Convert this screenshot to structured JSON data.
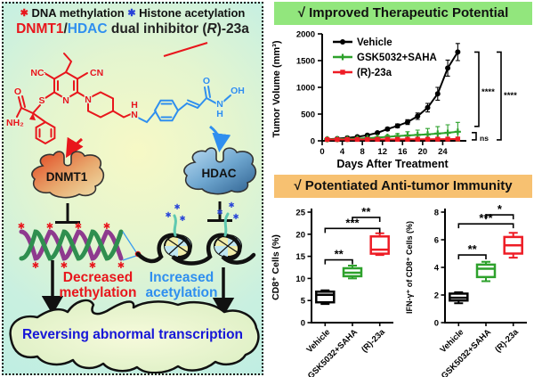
{
  "colors": {
    "red_accent": "#e8161c",
    "blue_accent": "#2f8fef",
    "green_banner": "#92e67d",
    "orange_banner": "#f7c171",
    "series_black": "#000000",
    "series_green": "#2ea12c",
    "series_red": "#ee1c25"
  },
  "left_panel": {
    "legend": {
      "star1": "✱",
      "item1": "DNA methylation",
      "star2": "✱",
      "item2": "Histone acetylation"
    },
    "title": {
      "dnmt1": "DNMT1",
      "slash": "/",
      "hdac": "HDAC",
      "rest1": " dual inhibitor (",
      "r": "R",
      "rest2": ")-23a"
    },
    "structure": {
      "nc": "NC",
      "cn": "CN",
      "s": "S",
      "n_pyridine": "N",
      "o_amide": "O",
      "nh2": "NH₂",
      "n_piperidine": "N",
      "h_linker": "H",
      "n_linker": "N",
      "o_carbonyl": "O",
      "n_hydroxamic": "N",
      "h_hydroxamic": "H",
      "oh": "OH"
    },
    "enzymes": {
      "dnmt1": "DNMT1",
      "hdac": "HDAC"
    },
    "decreased": "Decreased\nmethylation",
    "increased": "Increased\nacetylation",
    "banner": "Reversing abnormal transcription"
  },
  "right_top": {
    "title": "√ Improved Therapeutic Potential"
  },
  "right_bottom": {
    "title": "√ Potentiated Anti-tumor Immunity"
  },
  "chart_data": [
    {
      "type": "line",
      "xlabel": "Days After Treatment",
      "ylabel": "Tumor Volume (mm³)",
      "xlim": [
        0,
        28
      ],
      "ylim": [
        0,
        2000
      ],
      "xticks": [
        0,
        4,
        8,
        12,
        16,
        20,
        24
      ],
      "yticks": [
        0,
        500,
        1000,
        1500,
        2000
      ],
      "legend_position": "top-left",
      "x": [
        1,
        3,
        5,
        7,
        9,
        11,
        13,
        15,
        17,
        19,
        21,
        23,
        25,
        27
      ],
      "series": [
        {
          "name": "Vehicle",
          "color": "#000000",
          "marker": "circle",
          "values": [
            30,
            40,
            55,
            75,
            105,
            150,
            220,
            280,
            350,
            460,
            620,
            880,
            1360,
            1660
          ],
          "errors": [
            8,
            8,
            10,
            12,
            15,
            20,
            30,
            35,
            45,
            60,
            80,
            120,
            150,
            160
          ]
        },
        {
          "name": "GSK5032+SAHA",
          "color": "#2ea12c",
          "marker": "plus",
          "values": [
            30,
            32,
            36,
            42,
            50,
            60,
            75,
            90,
            100,
            110,
            120,
            135,
            150,
            170
          ],
          "errors": [
            6,
            6,
            8,
            10,
            14,
            18,
            28,
            45,
            70,
            90,
            110,
            130,
            150,
            175
          ]
        },
        {
          "name": "(R)-23a",
          "color": "#ee1c25",
          "marker": "square",
          "values": [
            25,
            24,
            25,
            26,
            26,
            27,
            28,
            28,
            29,
            30,
            30,
            31,
            32,
            34
          ],
          "errors": [
            5,
            5,
            5,
            6,
            6,
            6,
            7,
            7,
            7,
            8,
            8,
            8,
            9,
            10
          ]
        }
      ],
      "significance": [
        {
          "label": "****",
          "between": [
            "Vehicle",
            "GSK5032+SAHA"
          ]
        },
        {
          "label": "****",
          "between": [
            "Vehicle",
            "(R)-23a"
          ]
        },
        {
          "label": "ns",
          "between": [
            "GSK5032+SAHA",
            "(R)-23a"
          ]
        }
      ]
    },
    {
      "type": "box",
      "ylabel": "CD8⁺ Cells (%)",
      "ylim": [
        0,
        25
      ],
      "yticks": [
        0,
        5,
        10,
        15,
        20,
        25
      ],
      "categories": [
        "Vehicle",
        "GSK5032+SAHA",
        "(R)-23a"
      ],
      "boxes": [
        {
          "name": "Vehicle",
          "color": "#000000",
          "whislo": 4.2,
          "q1": 4.6,
          "med": 6.3,
          "q3": 7.0,
          "whishi": 7.3
        },
        {
          "name": "GSK5032+SAHA",
          "color": "#2ea12c",
          "whislo": 10.0,
          "q1": 10.5,
          "med": 11.3,
          "q3": 12.3,
          "whishi": 12.9
        },
        {
          "name": "(R)-23a",
          "color": "#ee1c25",
          "whislo": 15.3,
          "q1": 15.6,
          "med": 16.5,
          "q3": 19.5,
          "whishi": 20.2
        }
      ],
      "significance": [
        {
          "label": "**",
          "pair": [
            0,
            1
          ],
          "height": 14.2
        },
        {
          "label": "***",
          "pair": [
            0,
            2
          ],
          "height": 21.3
        },
        {
          "label": "**",
          "pair": [
            1,
            2
          ],
          "height": 23.8
        }
      ]
    },
    {
      "type": "box",
      "ylabel": "IFN-γ⁺ of CD8⁺ Cells (%)",
      "ylim": [
        0,
        8
      ],
      "yticks": [
        0,
        2,
        4,
        6,
        8
      ],
      "categories": [
        "Vehicle",
        "GSK5032+SAHA",
        "(R)-23a"
      ],
      "boxes": [
        {
          "name": "Vehicle",
          "color": "#000000",
          "whislo": 1.4,
          "q1": 1.6,
          "med": 1.8,
          "q3": 2.1,
          "whishi": 2.2
        },
        {
          "name": "GSK5032+SAHA",
          "color": "#2ea12c",
          "whislo": 3.0,
          "q1": 3.3,
          "med": 3.9,
          "q3": 4.2,
          "whishi": 4.4
        },
        {
          "name": "(R)-23a",
          "color": "#ee1c25",
          "whislo": 4.7,
          "q1": 5.0,
          "med": 5.6,
          "q3": 6.2,
          "whishi": 6.5
        }
      ],
      "significance": [
        {
          "label": "**",
          "pair": [
            0,
            1
          ],
          "height": 4.9
        },
        {
          "label": "***",
          "pair": [
            0,
            2
          ],
          "height": 7.15
        },
        {
          "label": "*",
          "pair": [
            1,
            2
          ],
          "height": 7.8
        }
      ]
    }
  ]
}
